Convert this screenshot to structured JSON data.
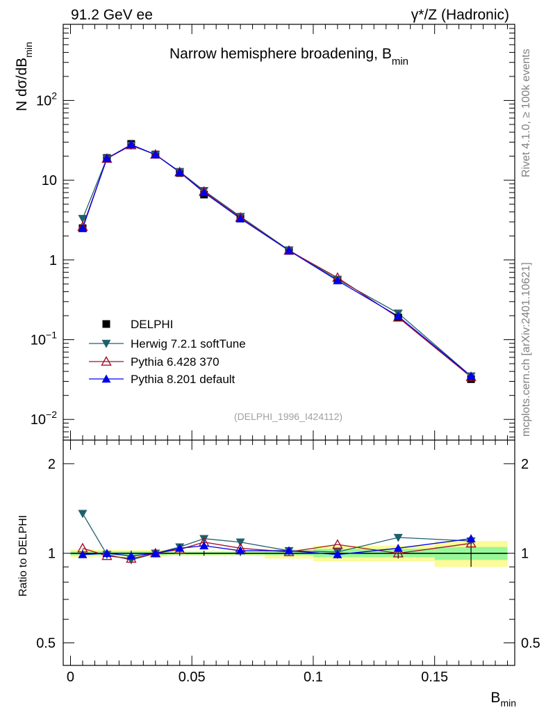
{
  "header": {
    "left": "91.2 GeV ee",
    "right": "γ*/Z (Hadronic)"
  },
  "side_labels": {
    "rivet": "Rivet 4.1.0, ≥ 100k events",
    "mcplots": "mcplots.cern.ch [arXiv:2401.10621]"
  },
  "colors": {
    "delphi": "#000000",
    "herwig": "#1f5f6b",
    "pythia6": "#a0102a",
    "pythia8": "#0000ee",
    "band_inner": "#98f898",
    "band_outer": "#fbfb98"
  },
  "chart_data": [
    {
      "type": "line",
      "title": "Narrow hemisphere broadening, B",
      "title_sub": "min",
      "watermark": "(DELPHI_1996_I424112)",
      "xlabel": "B",
      "xlabel_sub": "min",
      "ylabel": "N  dσ/dB",
      "ylabel_sub": "min",
      "yscale": "log",
      "xlim": [
        -0.003,
        0.183
      ],
      "ylim": [
        0.0055,
        900
      ],
      "y_ticks": [
        {
          "value": 0.01,
          "base": "10",
          "exp": "−2"
        },
        {
          "value": 0.1,
          "base": "10",
          "exp": "−1"
        },
        {
          "value": 1,
          "base": "1",
          "exp": ""
        },
        {
          "value": 10,
          "base": "10",
          "exp": ""
        },
        {
          "value": 100,
          "base": "10",
          "exp": "2"
        }
      ],
      "x": [
        0.005,
        0.015,
        0.025,
        0.035,
        0.045,
        0.055,
        0.07,
        0.09,
        0.11,
        0.135,
        0.165
      ],
      "series": [
        {
          "name": "DELPHI",
          "key": "delphi",
          "marker": "square",
          "values": [
            2.5,
            19.0,
            28.5,
            21.0,
            12.3,
            6.6,
            3.3,
            1.3,
            0.56,
            0.19,
            0.032
          ]
        },
        {
          "name": "Herwig 7.2.1 softTune",
          "key": "herwig",
          "marker": "triangle-down",
          "values": [
            3.3,
            18.8,
            27.3,
            20.9,
            12.8,
            7.4,
            3.5,
            1.33,
            0.57,
            0.215,
            0.035
          ]
        },
        {
          "name": "Pythia 6.428 370",
          "key": "pythia6",
          "marker": "triangle-up-open",
          "values": [
            2.6,
            18.6,
            27.5,
            21.0,
            12.6,
            7.2,
            3.4,
            1.31,
            0.6,
            0.19,
            0.034
          ]
        },
        {
          "name": "Pythia 8.201 default",
          "key": "pythia8",
          "marker": "triangle-up",
          "values": [
            2.48,
            18.8,
            27.9,
            20.9,
            12.6,
            7.0,
            3.3,
            1.31,
            0.55,
            0.197,
            0.035
          ]
        }
      ]
    },
    {
      "type": "line",
      "ylabel": "Ratio to DELPHI",
      "yscale": "log",
      "ylim": [
        0.42,
        2.4
      ],
      "y_ticks": [
        {
          "value": 0.5,
          "label": "0.5"
        },
        {
          "value": 1,
          "label": "1"
        },
        {
          "value": 2,
          "label": "2"
        }
      ],
      "x_ticks": [
        {
          "value": 0,
          "label": "0"
        },
        {
          "value": 0.05,
          "label": "0.05"
        },
        {
          "value": 0.1,
          "label": "0.1"
        },
        {
          "value": 0.15,
          "label": "0.15"
        }
      ],
      "bins": [
        {
          "lo": 0.0,
          "hi": 0.01,
          "inner": [
            0.985,
            1.015
          ],
          "outer": [
            0.97,
            1.03
          ]
        },
        {
          "lo": 0.01,
          "hi": 0.02,
          "inner": [
            0.985,
            1.015
          ],
          "outer": [
            0.975,
            1.025
          ]
        },
        {
          "lo": 0.02,
          "hi": 0.03,
          "inner": [
            0.985,
            1.015
          ],
          "outer": [
            0.975,
            1.025
          ]
        },
        {
          "lo": 0.03,
          "hi": 0.04,
          "inner": [
            0.985,
            1.015
          ],
          "outer": [
            0.975,
            1.025
          ]
        },
        {
          "lo": 0.04,
          "hi": 0.05,
          "inner": [
            0.99,
            1.01
          ],
          "outer": [
            0.98,
            1.02
          ]
        },
        {
          "lo": 0.05,
          "hi": 0.06,
          "inner": [
            0.99,
            1.01
          ],
          "outer": [
            0.98,
            1.02
          ]
        },
        {
          "lo": 0.06,
          "hi": 0.08,
          "inner": [
            0.99,
            1.01
          ],
          "outer": [
            0.98,
            1.02
          ]
        },
        {
          "lo": 0.08,
          "hi": 0.1,
          "inner": [
            0.985,
            1.015
          ],
          "outer": [
            0.96,
            1.035
          ]
        },
        {
          "lo": 0.1,
          "hi": 0.12,
          "inner": [
            0.97,
            1.035
          ],
          "outer": [
            0.94,
            1.06
          ]
        },
        {
          "lo": 0.12,
          "hi": 0.15,
          "inner": [
            0.97,
            1.035
          ],
          "outer": [
            0.94,
            1.06
          ]
        },
        {
          "lo": 0.15,
          "hi": 0.18,
          "inner": [
            0.95,
            1.05
          ],
          "outer": [
            0.9,
            1.1
          ]
        }
      ],
      "delphi_error": [
        0.03,
        0.02,
        0.02,
        0.02,
        0.02,
        0.02,
        0.02,
        0.02,
        0.04,
        0.04,
        0.1
      ],
      "series": [
        {
          "name": "Herwig 7.2.1 softTune",
          "key": "herwig",
          "values": [
            1.36,
            0.99,
            0.95,
            1.0,
            1.05,
            1.12,
            1.09,
            1.02,
            1.01,
            1.13,
            1.1
          ]
        },
        {
          "name": "Pythia 6.428 370",
          "key": "pythia6",
          "values": [
            1.04,
            0.98,
            0.96,
            1.0,
            1.03,
            1.09,
            1.04,
            1.01,
            1.07,
            1.0,
            1.08
          ]
        },
        {
          "name": "Pythia 8.201 default",
          "key": "pythia8",
          "values": [
            0.99,
            1.0,
            0.98,
            1.0,
            1.04,
            1.06,
            1.02,
            1.02,
            0.99,
            1.04,
            1.12
          ]
        }
      ]
    }
  ]
}
